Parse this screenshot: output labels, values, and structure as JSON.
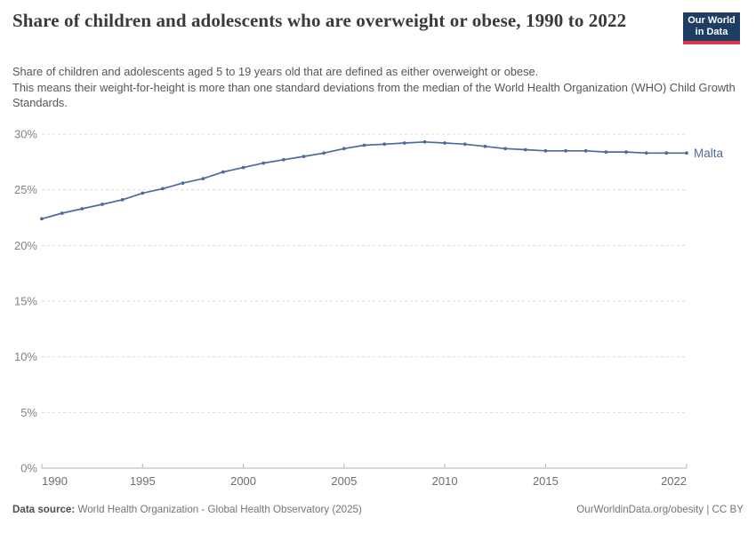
{
  "header": {
    "title": "Share of children and adolescents who are overweight or obese, 1990 to 2022",
    "subtitle_line1": "Share of children and adolescents aged 5 to 19 years old that are defined as either overweight or obese.",
    "subtitle_line2": "This means their weight-for-height is more than one standard deviations from the median of the World Health Organization (WHO) Child Growth Standards."
  },
  "logo": {
    "line1": "Our World",
    "line2": "in Data",
    "bg_color": "#1d3d63",
    "accent_color": "#d93a4a"
  },
  "chart_data": {
    "type": "line",
    "title": "Share of children and adolescents who are overweight or obese, 1990 to 2022",
    "xlabel": "",
    "ylabel": "",
    "xlim": [
      1990,
      2022
    ],
    "ylim": [
      0,
      30
    ],
    "x_ticks": [
      1990,
      1995,
      2000,
      2005,
      2010,
      2015,
      2022
    ],
    "x_tick_labels": [
      "1990",
      "1995",
      "2000",
      "2005",
      "2010",
      "2015",
      "2022"
    ],
    "y_ticks": [
      0,
      5,
      10,
      15,
      20,
      25,
      30
    ],
    "y_tick_labels": [
      "0%",
      "5%",
      "10%",
      "15%",
      "20%",
      "25%",
      "30%"
    ],
    "grid": "horizontal-dashed",
    "legend_position": "end-of-line",
    "series": [
      {
        "name": "Malta",
        "color": "#4c6a9c",
        "years": [
          1990,
          1991,
          1992,
          1993,
          1994,
          1995,
          1996,
          1997,
          1998,
          1999,
          2000,
          2001,
          2002,
          2003,
          2004,
          2005,
          2006,
          2007,
          2008,
          2009,
          2010,
          2011,
          2012,
          2013,
          2014,
          2015,
          2016,
          2017,
          2018,
          2019,
          2020,
          2021,
          2022
        ],
        "values": [
          22.4,
          22.9,
          23.3,
          23.7,
          24.1,
          24.7,
          25.1,
          25.6,
          26.0,
          26.6,
          27.0,
          27.4,
          27.7,
          28.0,
          28.3,
          28.7,
          29.0,
          29.1,
          29.2,
          29.3,
          29.2,
          29.1,
          28.9,
          28.7,
          28.6,
          28.5,
          28.5,
          28.5,
          28.4,
          28.4,
          28.3,
          28.3,
          28.3
        ]
      }
    ]
  },
  "axis_colors": {
    "gridline": "#dadada",
    "axis_line": "#b3b3b3",
    "tick": "#b3b3b3",
    "y_label_color": "#828282",
    "x_label_color": "#6e6e6e"
  },
  "footer": {
    "datasource_label": "Data source:",
    "datasource_text": " World Health Organization - Global Health Observatory (2025)",
    "citation": "OurWorldinData.org/obesity | CC BY"
  }
}
